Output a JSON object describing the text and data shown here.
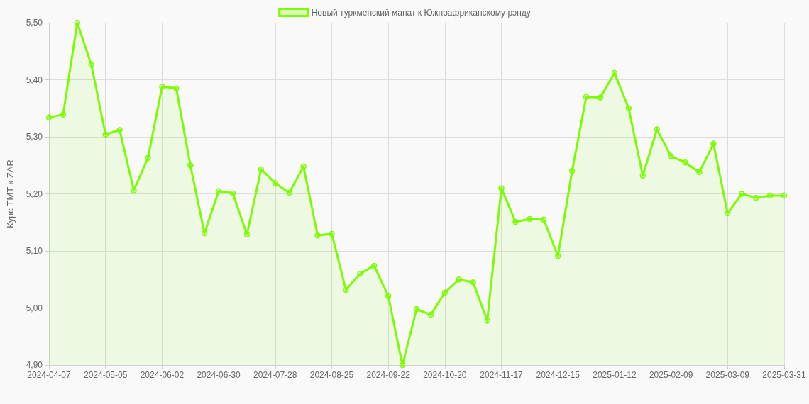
{
  "chart_data": {
    "type": "area",
    "categories": [
      "2024-04-07",
      null,
      null,
      null,
      "2024-05-05",
      null,
      null,
      null,
      "2024-06-02",
      null,
      null,
      null,
      "2024-06-30",
      null,
      null,
      null,
      "2024-07-28",
      null,
      null,
      null,
      "2024-08-25",
      null,
      null,
      null,
      "2024-09-22",
      null,
      null,
      null,
      "2024-10-20",
      null,
      null,
      null,
      "2024-11-17",
      null,
      null,
      null,
      "2024-12-15",
      null,
      null,
      null,
      "2025-01-12",
      null,
      null,
      null,
      "2025-02-09",
      null,
      null,
      null,
      "2025-03-09",
      null,
      null,
      null,
      "2025-03-31"
    ],
    "series": [
      {
        "name": "Новый туркменский манат к Южноафриканскому рэнду",
        "color": "#7cfc00",
        "values": [
          5.334,
          5.339,
          5.5,
          5.426,
          5.304,
          5.312,
          5.206,
          5.263,
          5.388,
          5.385,
          5.25,
          5.131,
          5.205,
          5.201,
          5.129,
          5.243,
          5.219,
          5.202,
          5.248,
          5.127,
          5.13,
          5.032,
          5.06,
          5.074,
          5.021,
          4.9,
          4.998,
          4.988,
          5.027,
          5.05,
          5.045,
          4.978,
          5.21,
          5.151,
          5.156,
          5.155,
          5.091,
          5.24,
          5.37,
          5.369,
          5.412,
          5.35,
          5.232,
          5.313,
          5.266,
          5.255,
          5.238,
          5.288,
          5.166,
          5.2,
          5.193,
          5.197,
          5.197
        ]
      }
    ],
    "ylabel": "Курс TMT к ZAR",
    "ylim": [
      4.9,
      5.5
    ],
    "yticks": [
      {
        "value": 4.9,
        "label": "4,90"
      },
      {
        "value": 5.0,
        "label": "5,00"
      },
      {
        "value": 5.1,
        "label": "5,10"
      },
      {
        "value": 5.2,
        "label": "5,20"
      },
      {
        "value": 5.3,
        "label": "5,30"
      },
      {
        "value": 5.4,
        "label": "5,40"
      },
      {
        "value": 5.5,
        "label": "5,50"
      }
    ],
    "grid": true,
    "legend": "top",
    "marker": "circle",
    "line_style": "solid"
  }
}
